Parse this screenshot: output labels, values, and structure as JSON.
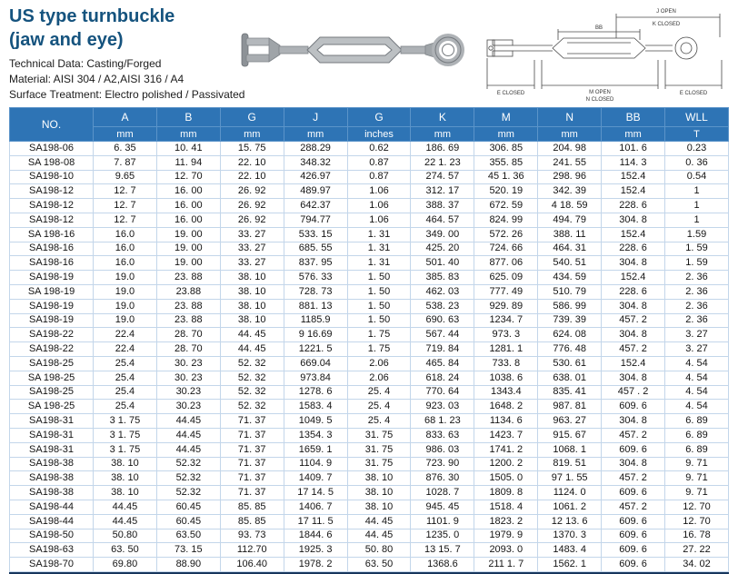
{
  "page": {
    "title_line1": "US type turnbuckle",
    "title_line2": "(jaw and eye)",
    "tech_data": "Technical Data: Casting/Forged",
    "material": "Material: AISI 304 / A2,AISI 316 / A4",
    "surface": "Surface Treatment: Electro polished / Passivated"
  },
  "diagram": {
    "labels": {
      "j_open": "J OPEN",
      "k_closed": "K CLOSED",
      "bb": "BB",
      "e_closed_left": "E CLOSED",
      "m_open": "M OPEN",
      "n_closed": "N CLOSED",
      "e_closed_right": "E CLOSED"
    }
  },
  "colors": {
    "header_bg": "#2e74b5",
    "title": "#15537e",
    "grid": "#c3d6ea",
    "bottom_bar": "#17365d"
  },
  "table": {
    "no_header": "NO.",
    "columns": [
      "A",
      "B",
      "G",
      "J",
      "G",
      "K",
      "M",
      "N",
      "BB",
      "WLL"
    ],
    "units": [
      "mm",
      "mm",
      "mm",
      "mm",
      "inches",
      "mm",
      "mm",
      "mm",
      "mm",
      "T"
    ],
    "rows": [
      [
        "SA198-06",
        "6. 35",
        "10. 41",
        "15. 75",
        "288.29",
        "0.62",
        "186. 69",
        "306. 85",
        "204. 98",
        "101. 6",
        "0.23"
      ],
      [
        "SA 198-08",
        "7. 87",
        "11. 94",
        "22. 10",
        "348.32",
        "0.87",
        "22 1. 23",
        "355. 85",
        "241. 55",
        "114. 3",
        "0. 36"
      ],
      [
        "SA198-10",
        "9.65",
        "12. 70",
        "22. 10",
        "426.97",
        "0.87",
        "274. 57",
        "45 1. 36",
        "298. 96",
        "152.4",
        "0.54"
      ],
      [
        "SA198-12",
        "12. 7",
        "16. 00",
        "26. 92",
        "489.97",
        "1.06",
        "312. 17",
        "520. 19",
        "342. 39",
        "152.4",
        "1"
      ],
      [
        "SA198-12",
        "12. 7",
        "16. 00",
        "26. 92",
        "642.37",
        "1.06",
        "388. 37",
        "672. 59",
        "4 18. 59",
        "228. 6",
        "1"
      ],
      [
        "SA198-12",
        "12. 7",
        "16. 00",
        "26. 92",
        "794.77",
        "1.06",
        "464. 57",
        "824. 99",
        "494. 79",
        "304. 8",
        "1"
      ],
      [
        "SA 198-16",
        "16.0",
        "19. 00",
        "33. 27",
        "533. 15",
        "1. 31",
        "349. 00",
        "572. 26",
        "388. 11",
        "152.4",
        "1.59"
      ],
      [
        "SA198-16",
        "16.0",
        "19. 00",
        "33. 27",
        "685. 55",
        "1. 31",
        "425. 20",
        "724. 66",
        "464. 31",
        "228. 6",
        "1. 59"
      ],
      [
        "SA198-16",
        "16.0",
        "19. 00",
        "33. 27",
        "837. 95",
        "1. 31",
        "501. 40",
        "877. 06",
        "540. 51",
        "304. 8",
        "1. 59"
      ],
      [
        "SA198-19",
        "19.0",
        "23. 88",
        "38. 10",
        "576. 33",
        "1. 50",
        "385. 83",
        "625. 09",
        "434. 59",
        "152.4",
        "2. 36"
      ],
      [
        "SA 198-19",
        "19.0",
        "23.88",
        "38. 10",
        "728. 73",
        "1. 50",
        "462. 03",
        "777. 49",
        "510. 79",
        "228. 6",
        "2. 36"
      ],
      [
        "SA198-19",
        "19.0",
        "23. 88",
        "38. 10",
        "881. 13",
        "1. 50",
        "538. 23",
        "929. 89",
        "586. 99",
        "304. 8",
        "2. 36"
      ],
      [
        "SA198-19",
        "19.0",
        "23. 88",
        "38. 10",
        "1185.9",
        "1. 50",
        "690. 63",
        "1234. 7",
        "739. 39",
        "457. 2",
        "2. 36"
      ],
      [
        "SA198-22",
        "22.4",
        "28. 70",
        "44. 45",
        "9 16.69",
        "1. 75",
        "567. 44",
        "973. 3",
        "624. 08",
        "304. 8",
        "3. 27"
      ],
      [
        "SA198-22",
        "22.4",
        "28. 70",
        "44. 45",
        "1221. 5",
        "1. 75",
        "719. 84",
        "1281. 1",
        "776. 48",
        "457. 2",
        "3. 27"
      ],
      [
        "SA198-25",
        "25.4",
        "30. 23",
        "52. 32",
        "669.04",
        "2.06",
        "465. 84",
        "733. 8",
        "530. 61",
        "152.4",
        "4. 54"
      ],
      [
        "SA 198-25",
        "25.4",
        "30. 23",
        "52. 32",
        "973.84",
        "2.06",
        "618. 24",
        "1038. 6",
        "638. 01",
        "304. 8",
        "4. 54"
      ],
      [
        "SA198-25",
        "25.4",
        "30.23",
        "52. 32",
        "1278. 6",
        "25. 4",
        "770. 64",
        "1343.4",
        "835. 41",
        "457 . 2",
        "4. 54"
      ],
      [
        "SA 198-25",
        "25.4",
        "30.23",
        "52. 32",
        "1583. 4",
        "25. 4",
        "923. 03",
        "1648. 2",
        "987. 81",
        "609. 6",
        "4. 54"
      ],
      [
        "SA198-31",
        "3 1. 75",
        "44.45",
        "71. 37",
        "1049. 5",
        "25. 4",
        "68 1. 23",
        "1134. 6",
        "963. 27",
        "304. 8",
        "6. 89"
      ],
      [
        "SA198-31",
        "3 1. 75",
        "44.45",
        "71. 37",
        "1354. 3",
        "31. 75",
        "833. 63",
        "1423. 7",
        "915. 67",
        "457. 2",
        "6. 89"
      ],
      [
        "SA198-31",
        "3 1. 75",
        "44.45",
        "71. 37",
        "1659. 1",
        "31. 75",
        "986. 03",
        "1741. 2",
        "1068. 1",
        "609. 6",
        "6. 89"
      ],
      [
        "SA198-38",
        "38. 10",
        "52.32",
        "71. 37",
        "1104. 9",
        "31. 75",
        "723. 90",
        "1200. 2",
        "819. 51",
        "304. 8",
        "9. 71"
      ],
      [
        "SA198-38",
        "38. 10",
        "52.32",
        "71. 37",
        "1409. 7",
        "38. 10",
        "876. 30",
        "1505. 0",
        "97 1. 55",
        "457. 2",
        "9. 71"
      ],
      [
        "SA198-38",
        "38. 10",
        "52.32",
        "71. 37",
        "17 14. 5",
        "38. 10",
        "1028. 7",
        "1809. 8",
        "1124. 0",
        "609. 6",
        "9. 71"
      ],
      [
        "SA198-44",
        "44.45",
        "60.45",
        "85. 85",
        "1406. 7",
        "38. 10",
        "945. 45",
        "1518. 4",
        "1061. 2",
        "457. 2",
        "12. 70"
      ],
      [
        "SA198-44",
        "44.45",
        "60.45",
        "85. 85",
        "17 11. 5",
        "44. 45",
        "1101. 9",
        "1823. 2",
        "12 13. 6",
        "609. 6",
        "12. 70"
      ],
      [
        "SA198-50",
        "50.80",
        "63.50",
        "93. 73",
        "1844. 6",
        "44. 45",
        "1235. 0",
        "1979. 9",
        "1370. 3",
        "609. 6",
        "16. 78"
      ],
      [
        "SA198-63",
        "63. 50",
        "73. 15",
        "112.70",
        "1925. 3",
        "50. 80",
        "13 15. 7",
        "2093. 0",
        "1483. 4",
        "609. 6",
        "27. 22"
      ],
      [
        "SA198-70",
        "69.80",
        "88.90",
        "106.40",
        "1978. 2",
        "63. 50",
        "1368.6",
        "211 1. 7",
        "1562. 1",
        "609. 6",
        "34. 02"
      ]
    ]
  }
}
